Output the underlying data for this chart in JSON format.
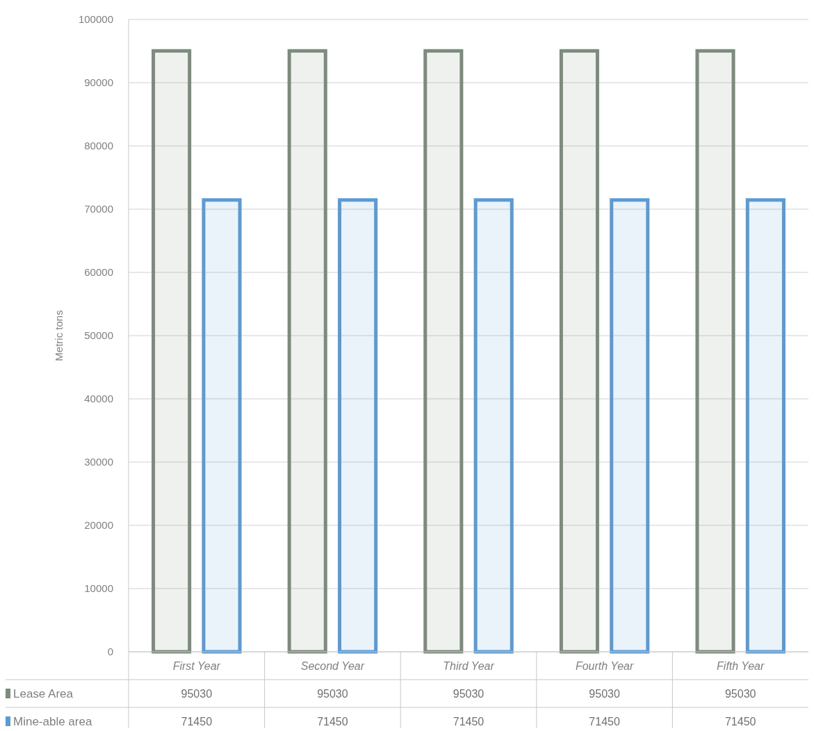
{
  "chart_data": {
    "type": "bar",
    "ylabel": "Metric tons",
    "categories": [
      "First Year",
      "Second Year",
      "Third Year",
      "Fourth Year",
      "Fifth Year"
    ],
    "series": [
      {
        "name": "Lease Area",
        "color": "#7d8b7d",
        "values": [
          95030,
          95030,
          95030,
          95030,
          95030
        ]
      },
      {
        "name": "Mine-able area",
        "color": "#5b9bd5",
        "values": [
          71450,
          71450,
          71450,
          71450,
          71450
        ]
      }
    ],
    "ylim": [
      0,
      100000
    ],
    "yticks": [
      0,
      10000,
      20000,
      30000,
      40000,
      50000,
      60000,
      70000,
      80000,
      90000,
      100000
    ],
    "grid": "y",
    "legend": "bottom left",
    "data_labels": true
  }
}
